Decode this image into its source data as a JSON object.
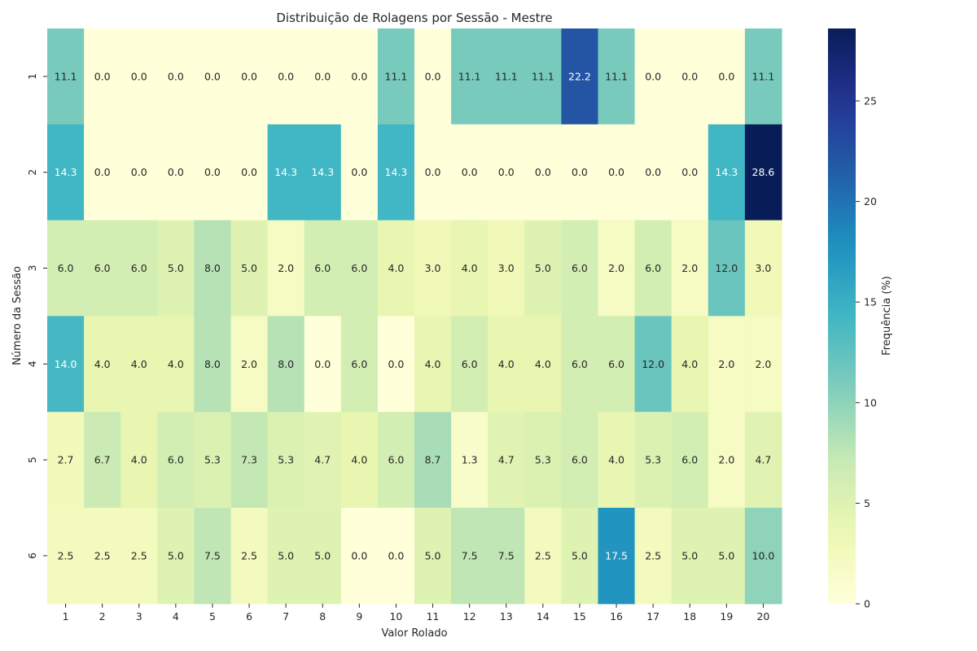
{
  "chart_data": {
    "type": "heatmap",
    "title": "Distribuição de Rolagens por Sessão - Mestre",
    "xlabel": "Valor Rolado",
    "ylabel": "Número da Sessão",
    "colorbar_label": "Frequência (%)",
    "colormap": "YlGnBu",
    "vmin": 0,
    "vmax": 28.6,
    "colorbar_ticks": [
      0,
      5,
      10,
      15,
      20,
      25
    ],
    "x_categories": [
      "1",
      "2",
      "3",
      "4",
      "5",
      "6",
      "7",
      "8",
      "9",
      "10",
      "11",
      "12",
      "13",
      "14",
      "15",
      "16",
      "17",
      "18",
      "19",
      "20"
    ],
    "y_categories": [
      "1",
      "2",
      "3",
      "4",
      "5",
      "6"
    ],
    "values": [
      [
        11.1,
        0.0,
        0.0,
        0.0,
        0.0,
        0.0,
        0.0,
        0.0,
        0.0,
        11.1,
        0.0,
        11.1,
        11.1,
        11.1,
        22.2,
        11.1,
        0.0,
        0.0,
        0.0,
        11.1
      ],
      [
        14.3,
        0.0,
        0.0,
        0.0,
        0.0,
        0.0,
        14.3,
        14.3,
        0.0,
        14.3,
        0.0,
        0.0,
        0.0,
        0.0,
        0.0,
        0.0,
        0.0,
        0.0,
        14.3,
        28.6
      ],
      [
        6.0,
        6.0,
        6.0,
        5.0,
        8.0,
        5.0,
        2.0,
        6.0,
        6.0,
        4.0,
        3.0,
        4.0,
        3.0,
        5.0,
        6.0,
        2.0,
        6.0,
        2.0,
        12.0,
        3.0
      ],
      [
        14.0,
        4.0,
        4.0,
        4.0,
        8.0,
        2.0,
        8.0,
        0.0,
        6.0,
        0.0,
        4.0,
        6.0,
        4.0,
        4.0,
        6.0,
        6.0,
        12.0,
        4.0,
        2.0,
        2.0
      ],
      [
        2.7,
        6.7,
        4.0,
        6.0,
        5.3,
        7.3,
        5.3,
        4.7,
        4.0,
        6.0,
        8.7,
        1.3,
        4.7,
        5.3,
        6.0,
        4.0,
        5.3,
        6.0,
        2.0,
        4.7
      ],
      [
        2.5,
        2.5,
        2.5,
        5.0,
        7.5,
        2.5,
        5.0,
        5.0,
        0.0,
        0.0,
        5.0,
        7.5,
        7.5,
        2.5,
        5.0,
        17.5,
        2.5,
        5.0,
        5.0,
        10.0
      ]
    ],
    "value_format": "one-decimal",
    "grid": false
  }
}
